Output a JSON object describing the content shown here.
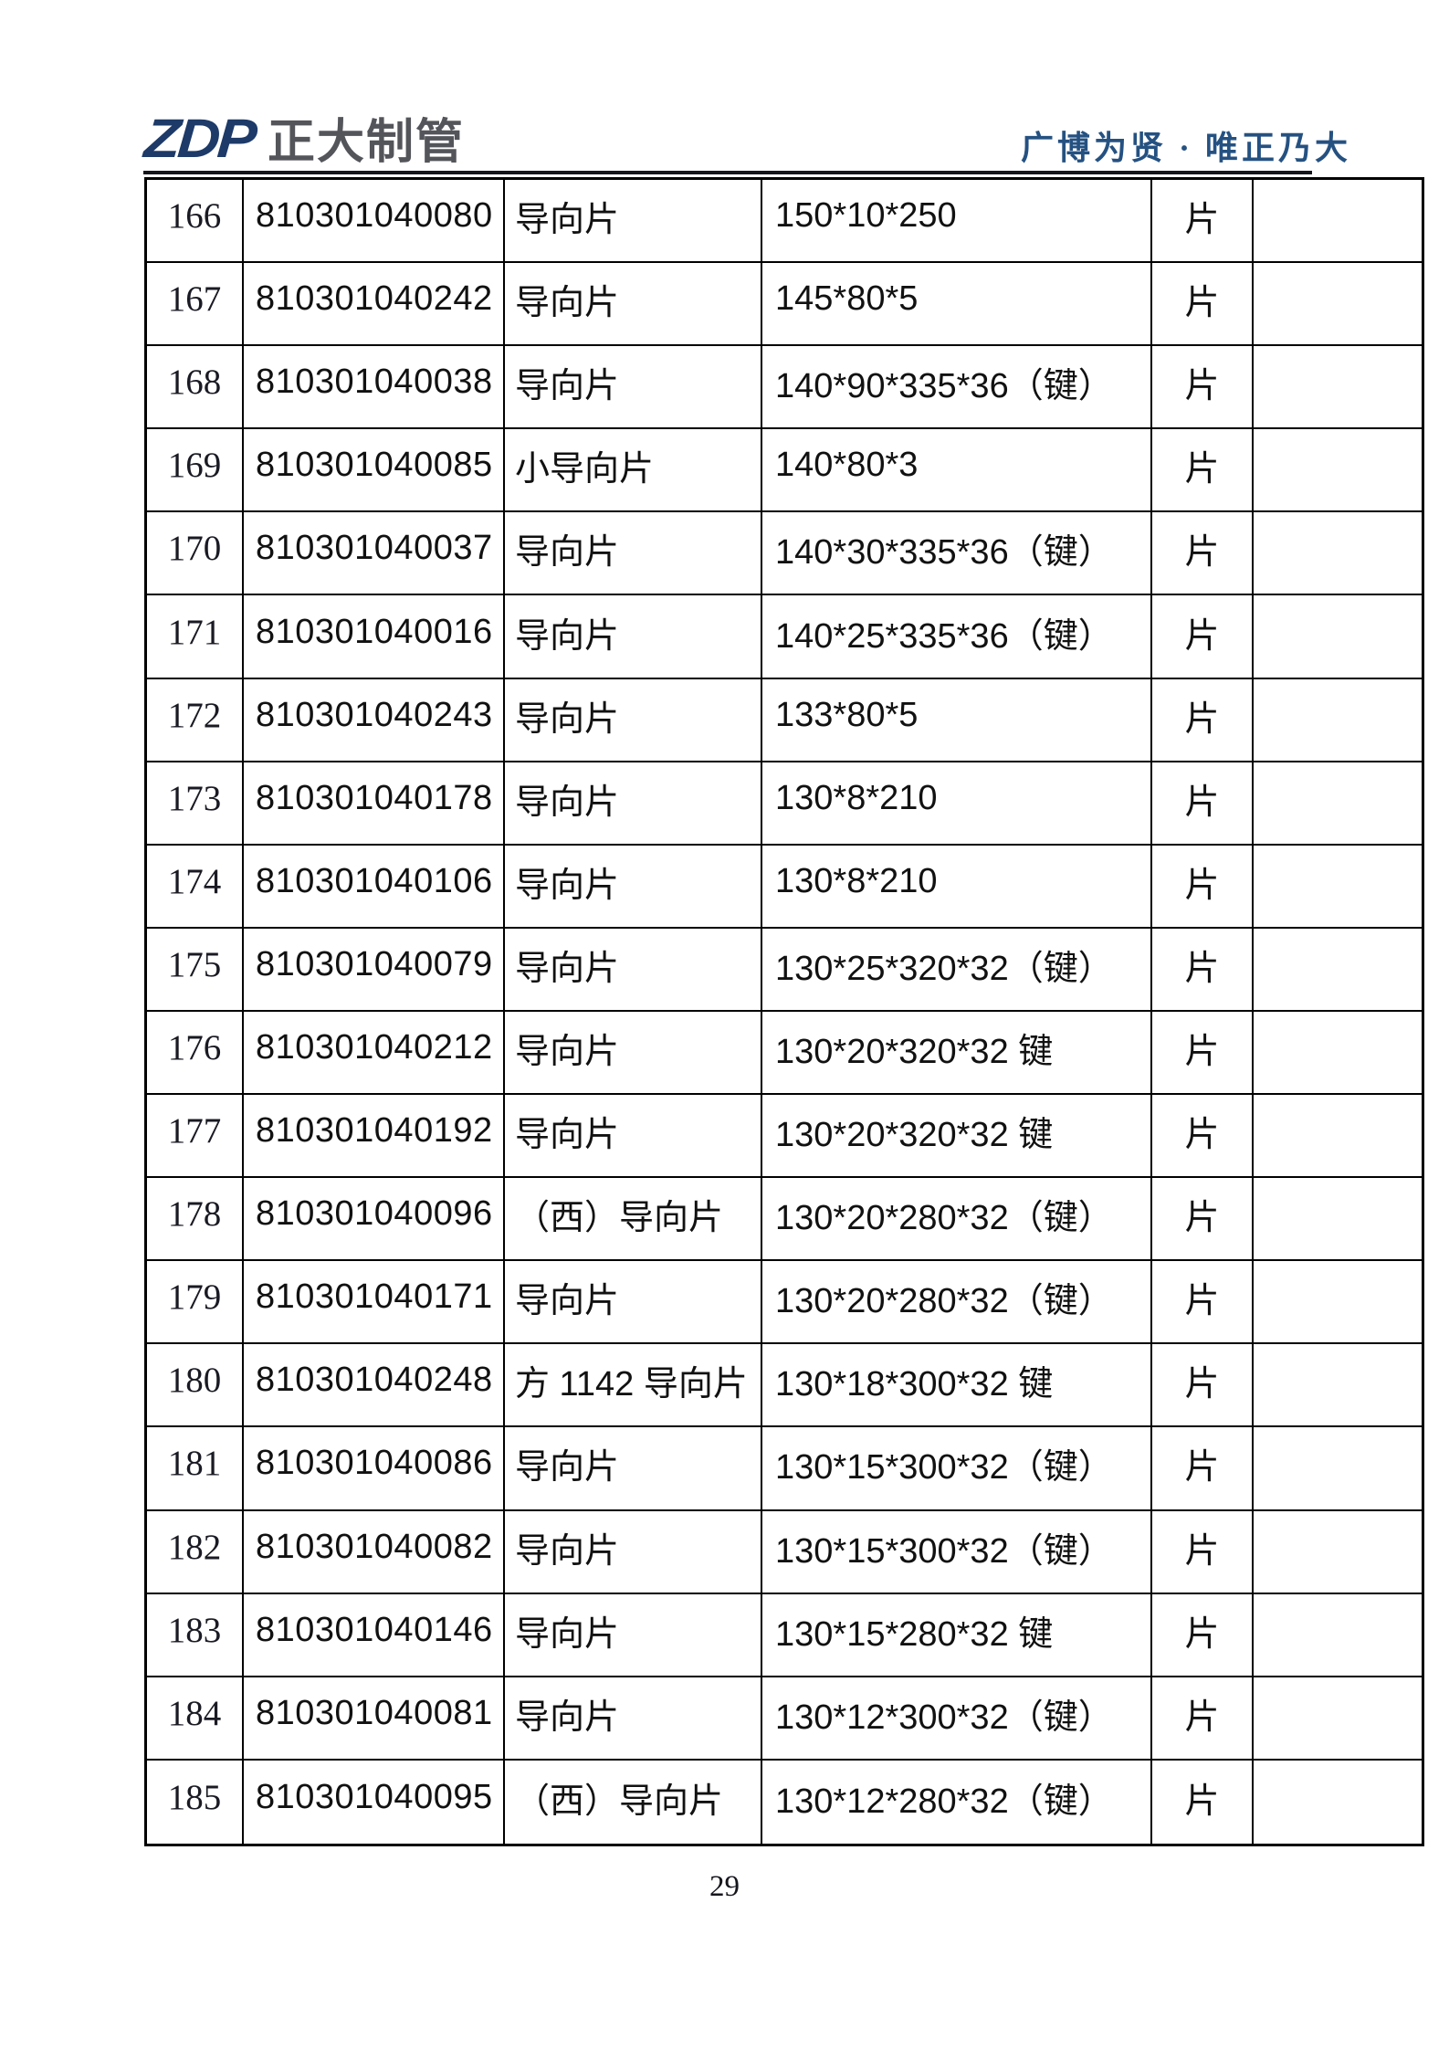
{
  "header": {
    "logo_zdp": "ZDP",
    "logo_company": "正大制管",
    "slogan": "广博为贤 · 唯正乃大"
  },
  "table": {
    "rows": [
      {
        "no": "166",
        "code": "810301040080",
        "name": "导向片",
        "spec": "150*10*250",
        "unit": "片",
        "note": ""
      },
      {
        "no": "167",
        "code": "810301040242",
        "name": "导向片",
        "spec": "145*80*5",
        "unit": "片",
        "note": ""
      },
      {
        "no": "168",
        "code": "810301040038",
        "name": "导向片",
        "spec": "140*90*335*36（键）",
        "unit": "片",
        "note": ""
      },
      {
        "no": "169",
        "code": "810301040085",
        "name": "小导向片",
        "spec": "140*80*3",
        "unit": "片",
        "note": ""
      },
      {
        "no": "170",
        "code": "810301040037",
        "name": "导向片",
        "spec": "140*30*335*36（键）",
        "unit": "片",
        "note": ""
      },
      {
        "no": "171",
        "code": "810301040016",
        "name": "导向片",
        "spec": "140*25*335*36（键）",
        "unit": "片",
        "note": ""
      },
      {
        "no": "172",
        "code": "810301040243",
        "name": "导向片",
        "spec": "133*80*5",
        "unit": "片",
        "note": ""
      },
      {
        "no": "173",
        "code": "810301040178",
        "name": "导向片",
        "spec": "130*8*210",
        "unit": "片",
        "note": ""
      },
      {
        "no": "174",
        "code": "810301040106",
        "name": "导向片",
        "spec": "130*8*210",
        "unit": "片",
        "note": ""
      },
      {
        "no": "175",
        "code": "810301040079",
        "name": "导向片",
        "spec": "130*25*320*32（键）",
        "unit": "片",
        "note": ""
      },
      {
        "no": "176",
        "code": "810301040212",
        "name": "导向片",
        "spec": "130*20*320*32 键",
        "unit": "片",
        "note": ""
      },
      {
        "no": "177",
        "code": "810301040192",
        "name": "导向片",
        "spec": "130*20*320*32 键",
        "unit": "片",
        "note": ""
      },
      {
        "no": "178",
        "code": "810301040096",
        "name": "（西）导向片",
        "spec": "130*20*280*32（键）",
        "unit": "片",
        "note": ""
      },
      {
        "no": "179",
        "code": "810301040171",
        "name": "导向片",
        "spec": "130*20*280*32（键）",
        "unit": "片",
        "note": ""
      },
      {
        "no": "180",
        "code": "810301040248",
        "name": "方 1142 导向片",
        "spec": "130*18*300*32 键",
        "unit": "片",
        "note": ""
      },
      {
        "no": "181",
        "code": "810301040086",
        "name": "导向片",
        "spec": "130*15*300*32（键）",
        "unit": "片",
        "note": ""
      },
      {
        "no": "182",
        "code": "810301040082",
        "name": "导向片",
        "spec": "130*15*300*32（键）",
        "unit": "片",
        "note": ""
      },
      {
        "no": "183",
        "code": "810301040146",
        "name": "导向片",
        "spec": "130*15*280*32 键",
        "unit": "片",
        "note": ""
      },
      {
        "no": "184",
        "code": "810301040081",
        "name": "导向片",
        "spec": "130*12*300*32（键）",
        "unit": "片",
        "note": ""
      },
      {
        "no": "185",
        "code": "810301040095",
        "name": "（西）导向片",
        "spec": "130*12*280*32（键）",
        "unit": "片",
        "note": ""
      }
    ]
  },
  "footer": {
    "page_number": "29"
  },
  "colors": {
    "logo_navy": "#1d3a68",
    "company_gray": "#54555a",
    "slogan_blue": "#255181",
    "header_rule": "#15151c",
    "table_border": "#000000",
    "text": "#111111"
  }
}
